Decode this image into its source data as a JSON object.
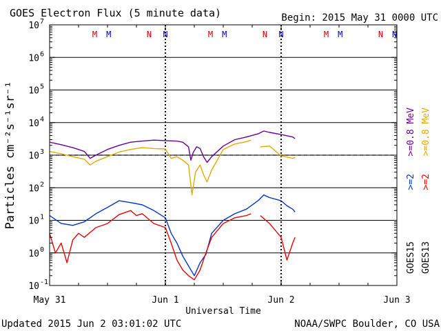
{
  "chart_data": {
    "type": "line",
    "title": "GOES Electron Flux (5 minute data)",
    "begin_label": "Begin: 2015 May 31 0000 UTC",
    "xlabel": "Universal Time",
    "ylabel": "Particles cm⁻²s⁻¹sr⁻¹",
    "x_range_days": [
      0,
      3
    ],
    "x_ticks": [
      {
        "day": 0,
        "label": "May 31"
      },
      {
        "day": 1,
        "label": "Jun 1"
      },
      {
        "day": 2,
        "label": "Jun 2"
      },
      {
        "day": 3,
        "label": "Jun 3"
      }
    ],
    "y_scale": "log",
    "y_range": [
      0.1,
      10000000
    ],
    "y_ticks": [
      {
        "value": 0.1,
        "base": "10",
        "exp": "-1"
      },
      {
        "value": 1,
        "base": "10",
        "exp": "0"
      },
      {
        "value": 10,
        "base": "10",
        "exp": "1"
      },
      {
        "value": 100,
        "base": "10",
        "exp": "2"
      },
      {
        "value": 1000,
        "base": "10",
        "exp": "3"
      },
      {
        "value": 10000,
        "base": "10",
        "exp": "4"
      },
      {
        "value": 100000,
        "base": "10",
        "exp": "5"
      },
      {
        "value": 1000000,
        "base": "10",
        "exp": "6"
      },
      {
        "value": 10000000,
        "base": "10",
        "exp": "7"
      }
    ],
    "grid": true,
    "threshold": {
      "value": 1000,
      "style": "dashed"
    },
    "noon_markers": [
      {
        "day": 0.39,
        "label": "M",
        "color": "#cc0000"
      },
      {
        "day": 0.51,
        "label": "M",
        "color": "#0000cc"
      },
      {
        "day": 0.86,
        "label": "N",
        "color": "#cc0000"
      },
      {
        "day": 1.0,
        "label": "N",
        "color": "#0000cc"
      },
      {
        "day": 1.39,
        "label": "M",
        "color": "#cc0000"
      },
      {
        "day": 1.51,
        "label": "M",
        "color": "#0000cc"
      },
      {
        "day": 1.86,
        "label": "N",
        "color": "#cc0000"
      },
      {
        "day": 2.0,
        "label": "N",
        "color": "#0000cc"
      },
      {
        "day": 2.39,
        "label": "M",
        "color": "#cc0000"
      },
      {
        "day": 2.51,
        "label": "M",
        "color": "#0000cc"
      },
      {
        "day": 2.86,
        "label": "N",
        "color": "#cc0000"
      },
      {
        "day": 2.98,
        "label": "N",
        "color": "#0000cc"
      }
    ],
    "day_boundaries": [
      1,
      2
    ],
    "right_legend": [
      {
        "label": ">=0.8 MeV",
        "color": "#660099"
      },
      {
        "label": ">=0.8 MeV",
        "color": "#e6a800"
      },
      {
        "label": ">=2",
        "color": "#0033cc"
      },
      {
        "label": ">=2",
        "color": "#ee0000"
      },
      {
        "label": "GOES15",
        "color": "#000000"
      },
      {
        "label": "GOES13",
        "color": "#000000"
      }
    ],
    "series": [
      {
        "color": "#660099",
        "points": [
          [
            0.0,
            2500
          ],
          [
            0.1,
            2100
          ],
          [
            0.2,
            1700
          ],
          [
            0.3,
            1300
          ],
          [
            0.35,
            800
          ],
          [
            0.4,
            1000
          ],
          [
            0.5,
            1500
          ],
          [
            0.6,
            2000
          ],
          [
            0.7,
            2500
          ],
          [
            0.8,
            2700
          ],
          [
            0.9,
            2900
          ],
          [
            1.0,
            2800
          ],
          [
            1.1,
            2700
          ],
          [
            1.15,
            2500
          ],
          [
            1.2,
            1800
          ],
          [
            1.22,
            700
          ],
          [
            1.24,
            1200
          ],
          [
            1.27,
            1800
          ],
          [
            1.3,
            1600
          ],
          [
            1.33,
            900
          ],
          [
            1.36,
            600
          ],
          [
            1.4,
            900
          ],
          [
            1.5,
            1900
          ],
          [
            1.6,
            3000
          ],
          [
            1.7,
            3600
          ],
          [
            1.8,
            4500
          ],
          [
            1.85,
            5500
          ],
          [
            1.9,
            5000
          ],
          [
            2.0,
            4300
          ],
          [
            2.1,
            3600
          ],
          [
            2.12,
            3200
          ]
        ]
      },
      {
        "color": "#e6a800",
        "points": [
          [
            0.0,
            1300
          ],
          [
            0.1,
            1100
          ],
          [
            0.2,
            900
          ],
          [
            0.3,
            750
          ],
          [
            0.35,
            500
          ],
          [
            0.4,
            650
          ],
          [
            0.5,
            900
          ],
          [
            0.6,
            1250
          ],
          [
            0.7,
            1500
          ],
          [
            0.8,
            1700
          ],
          [
            0.9,
            1600
          ],
          [
            1.0,
            1550
          ],
          [
            1.05,
            800
          ],
          [
            1.1,
            900
          ],
          [
            1.15,
            700
          ],
          [
            1.2,
            500
          ],
          [
            1.23,
            60
          ],
          [
            1.26,
            300
          ],
          [
            1.3,
            500
          ],
          [
            1.33,
            250
          ],
          [
            1.36,
            150
          ],
          [
            1.4,
            350
          ],
          [
            1.5,
            1500
          ],
          [
            1.6,
            2200
          ],
          [
            1.7,
            2600
          ],
          [
            1.74,
            2900
          ],
          [
            null,
            null
          ],
          [
            1.82,
            1800
          ],
          [
            1.9,
            1900
          ],
          [
            2.0,
            950
          ],
          [
            2.1,
            800
          ],
          [
            2.12,
            850
          ]
        ]
      },
      {
        "color": "#0033cc",
        "points": [
          [
            0.0,
            14
          ],
          [
            0.1,
            8
          ],
          [
            0.2,
            7
          ],
          [
            0.3,
            9
          ],
          [
            0.4,
            16
          ],
          [
            0.5,
            25
          ],
          [
            0.6,
            40
          ],
          [
            0.7,
            35
          ],
          [
            0.8,
            30
          ],
          [
            0.9,
            20
          ],
          [
            1.0,
            12
          ],
          [
            1.05,
            4
          ],
          [
            1.1,
            2
          ],
          [
            1.15,
            0.8
          ],
          [
            1.2,
            0.4
          ],
          [
            1.25,
            0.2
          ],
          [
            1.3,
            0.5
          ],
          [
            1.35,
            0.9
          ],
          [
            1.4,
            4
          ],
          [
            1.5,
            10
          ],
          [
            1.6,
            16
          ],
          [
            1.7,
            22
          ],
          [
            1.8,
            40
          ],
          [
            1.85,
            60
          ],
          [
            1.9,
            50
          ],
          [
            2.0,
            40
          ],
          [
            2.05,
            28
          ],
          [
            2.1,
            22
          ],
          [
            2.12,
            18
          ]
        ]
      },
      {
        "color": "#ee0000",
        "points": [
          [
            0.0,
            4
          ],
          [
            0.05,
            1
          ],
          [
            0.1,
            2
          ],
          [
            0.15,
            0.5
          ],
          [
            0.2,
            2.5
          ],
          [
            0.25,
            4
          ],
          [
            0.3,
            3
          ],
          [
            0.4,
            6
          ],
          [
            0.5,
            8
          ],
          [
            0.6,
            15
          ],
          [
            0.7,
            20
          ],
          [
            0.75,
            14
          ],
          [
            0.8,
            16
          ],
          [
            0.9,
            8
          ],
          [
            1.0,
            6
          ],
          [
            1.05,
            2
          ],
          [
            1.1,
            0.6
          ],
          [
            1.15,
            0.3
          ],
          [
            1.2,
            0.2
          ],
          [
            1.25,
            0.15
          ],
          [
            1.3,
            0.3
          ],
          [
            1.35,
            1
          ],
          [
            1.4,
            3
          ],
          [
            1.5,
            8
          ],
          [
            1.6,
            12
          ],
          [
            1.7,
            14
          ],
          [
            1.74,
            16
          ],
          [
            null,
            null
          ],
          [
            1.82,
            14
          ],
          [
            1.9,
            8
          ],
          [
            2.0,
            3
          ],
          [
            2.05,
            0.6
          ],
          [
            2.1,
            2
          ],
          [
            2.12,
            3
          ]
        ]
      }
    ]
  },
  "footer": {
    "updated": "Updated 2015 Jun  2 03:01:02 UTC",
    "source": "NOAA/SWPC Boulder, CO USA"
  }
}
